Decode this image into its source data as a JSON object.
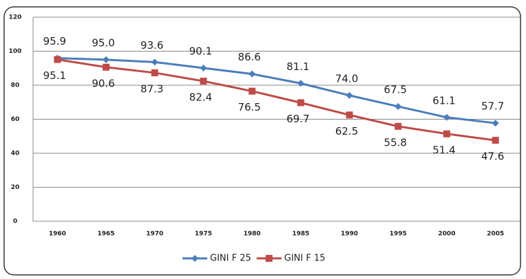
{
  "chart_data": {
    "type": "line",
    "categories": [
      "1960",
      "1965",
      "1970",
      "1975",
      "1980",
      "1985",
      "1990",
      "1995",
      "2000",
      "2005"
    ],
    "series": [
      {
        "name": "GINI F 25",
        "color": "#4a7ebb",
        "marker": "diamond",
        "values": [
          95.9,
          95.0,
          93.6,
          90.1,
          86.6,
          81.1,
          74.0,
          67.5,
          61.1,
          57.7
        ],
        "value_labels": [
          "95.9",
          "95.0",
          "93.6",
          "90.1",
          "86.6",
          "81.1",
          "74.0",
          "67.5",
          "61.1",
          "57.7"
        ]
      },
      {
        "name": "GINI F 15",
        "color": "#be4b48",
        "marker": "square",
        "values": [
          95.1,
          90.6,
          87.3,
          82.4,
          76.5,
          69.7,
          62.5,
          55.8,
          51.4,
          47.6
        ],
        "value_labels": [
          "95.1",
          "90.6",
          "87.3",
          "82.4",
          "76.5",
          "69.7",
          "62.5",
          "55.8",
          "51.4",
          "47.6"
        ]
      }
    ],
    "ylim": [
      0,
      120
    ],
    "yticks": [
      0,
      20,
      40,
      60,
      80,
      100,
      120
    ],
    "grid": true,
    "legend": "bottom"
  }
}
